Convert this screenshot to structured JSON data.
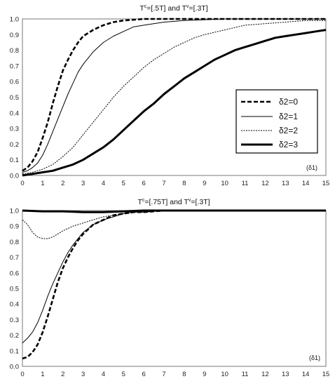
{
  "chart_data": [
    {
      "type": "line",
      "title_parts": {
        "t1": "T",
        "s1": "c",
        "m1": "=[.5T] and T",
        "s2": "v",
        "m2": "=[.3T]"
      },
      "xlabel_tag": "(δ1)",
      "xlim": [
        0,
        15
      ],
      "ylim": [
        0,
        1.0
      ],
      "xticks": [
        "0",
        "1",
        "2",
        "3",
        "4",
        "5",
        "6",
        "7",
        "8",
        "9",
        "10",
        "11",
        "12",
        "13",
        "14",
        "15"
      ],
      "yticks": [
        "0.0",
        "0.1",
        "0.2",
        "0.3",
        "0.4",
        "0.5",
        "0.6",
        "0.7",
        "0.8",
        "0.9",
        "1.0"
      ],
      "grid": false,
      "legend_position": "right-middle",
      "legend": [
        {
          "label": "δ2=0",
          "series": 0
        },
        {
          "label": "δ2=1",
          "series": 1
        },
        {
          "label": "δ2=2",
          "series": 2
        },
        {
          "label": "δ2=3",
          "series": 3
        }
      ],
      "series": [
        {
          "style": "thick-dashed",
          "x": [
            0,
            0.25,
            0.5,
            0.75,
            1,
            1.25,
            1.5,
            1.75,
            2,
            2.25,
            2.5,
            2.75,
            3,
            3.5,
            4,
            4.5,
            5,
            5.5,
            6,
            7,
            8,
            9,
            10,
            11,
            12,
            13,
            14,
            15
          ],
          "y": [
            0.03,
            0.05,
            0.09,
            0.15,
            0.24,
            0.34,
            0.46,
            0.57,
            0.67,
            0.74,
            0.8,
            0.85,
            0.89,
            0.93,
            0.96,
            0.98,
            0.99,
            0.995,
            1,
            1,
            1,
            1,
            1,
            1,
            1,
            1,
            1,
            1
          ]
        },
        {
          "style": "thin-solid",
          "x": [
            0,
            0.25,
            0.5,
            0.75,
            1,
            1.25,
            1.5,
            1.75,
            2,
            2.25,
            2.5,
            2.75,
            3,
            3.5,
            4,
            4.5,
            5,
            5.5,
            6,
            7,
            8,
            9,
            10,
            11,
            12,
            13,
            14,
            15
          ],
          "y": [
            0.02,
            0.03,
            0.05,
            0.08,
            0.13,
            0.2,
            0.28,
            0.36,
            0.44,
            0.52,
            0.59,
            0.66,
            0.71,
            0.79,
            0.85,
            0.89,
            0.92,
            0.95,
            0.96,
            0.98,
            0.99,
            0.995,
            1,
            1,
            1,
            1,
            1,
            1
          ]
        },
        {
          "style": "dotted",
          "x": [
            0,
            0.5,
            1,
            1.5,
            2,
            2.5,
            3,
            3.5,
            4,
            4.5,
            5,
            5.5,
            6,
            6.5,
            7,
            7.5,
            8,
            8.5,
            9,
            10,
            11,
            12,
            13,
            14,
            15
          ],
          "y": [
            0.01,
            0.02,
            0.04,
            0.07,
            0.12,
            0.18,
            0.26,
            0.34,
            0.42,
            0.5,
            0.57,
            0.63,
            0.69,
            0.74,
            0.78,
            0.82,
            0.85,
            0.88,
            0.9,
            0.93,
            0.96,
            0.97,
            0.98,
            0.99,
            0.99
          ]
        },
        {
          "style": "thick-solid",
          "x": [
            0,
            0.5,
            1,
            1.5,
            2,
            2.5,
            3,
            3.5,
            4,
            4.5,
            5,
            5.5,
            6,
            6.5,
            7,
            7.5,
            8,
            8.5,
            9,
            9.5,
            10,
            10.5,
            11,
            11.5,
            12,
            12.5,
            13,
            13.5,
            14,
            14.5,
            15
          ],
          "y": [
            0,
            0.01,
            0.02,
            0.03,
            0.05,
            0.07,
            0.1,
            0.14,
            0.18,
            0.23,
            0.29,
            0.35,
            0.41,
            0.46,
            0.52,
            0.57,
            0.62,
            0.66,
            0.7,
            0.74,
            0.77,
            0.8,
            0.82,
            0.84,
            0.86,
            0.88,
            0.89,
            0.9,
            0.91,
            0.92,
            0.93
          ]
        }
      ]
    },
    {
      "type": "line",
      "title_parts": {
        "t1": "T",
        "s1": "c",
        "m1": "=[.75T] and T",
        "s2": "v",
        "m2": "=[.3T]"
      },
      "xlabel_tag": "(δ1)",
      "xlim": [
        0,
        15
      ],
      "ylim": [
        0,
        1.0
      ],
      "xticks": [
        "0",
        "1",
        "2",
        "3",
        "4",
        "5",
        "6",
        "7",
        "8",
        "9",
        "10",
        "11",
        "12",
        "13",
        "14",
        "15"
      ],
      "yticks": [
        "0.0",
        "0.1",
        "0.2",
        "0.3",
        "0.4",
        "0.5",
        "0.6",
        "0.7",
        "0.8",
        "0.9",
        "1.0"
      ],
      "grid": false,
      "series": [
        {
          "style": "thick-dashed",
          "x": [
            0,
            0.25,
            0.5,
            0.75,
            1,
            1.25,
            1.5,
            1.75,
            2,
            2.25,
            2.5,
            2.75,
            3,
            3.5,
            4,
            4.5,
            5,
            5.5,
            6,
            7,
            8,
            9,
            10,
            11,
            12,
            13,
            14,
            15
          ],
          "y": [
            0.05,
            0.06,
            0.09,
            0.14,
            0.22,
            0.32,
            0.43,
            0.54,
            0.63,
            0.7,
            0.76,
            0.81,
            0.85,
            0.91,
            0.94,
            0.97,
            0.98,
            0.99,
            0.99,
            1,
            1,
            1,
            1,
            1,
            1,
            1,
            1,
            1
          ]
        },
        {
          "style": "thin-solid",
          "x": [
            0,
            0.25,
            0.5,
            0.75,
            1,
            1.25,
            1.5,
            1.75,
            2,
            2.25,
            2.5,
            2.75,
            3,
            3.5,
            4,
            4.5,
            5,
            5.5,
            6,
            7,
            8,
            9,
            10,
            11,
            12,
            13,
            14,
            15
          ],
          "y": [
            0.15,
            0.18,
            0.22,
            0.28,
            0.36,
            0.45,
            0.53,
            0.6,
            0.67,
            0.73,
            0.78,
            0.82,
            0.86,
            0.91,
            0.94,
            0.96,
            0.98,
            0.99,
            0.99,
            1,
            1,
            1,
            1,
            1,
            1,
            1,
            1,
            1
          ]
        },
        {
          "style": "dotted",
          "x": [
            0,
            0.25,
            0.5,
            0.75,
            1,
            1.25,
            1.5,
            1.75,
            2,
            2.5,
            3,
            3.5,
            4,
            4.5,
            5,
            5.5,
            6,
            7,
            8,
            9,
            10,
            11,
            12,
            13,
            14,
            15
          ],
          "y": [
            0.94,
            0.91,
            0.86,
            0.83,
            0.82,
            0.82,
            0.83,
            0.85,
            0.87,
            0.9,
            0.92,
            0.94,
            0.96,
            0.97,
            0.98,
            0.99,
            0.99,
            1,
            1,
            1,
            1,
            1,
            1,
            1,
            1,
            1
          ]
        },
        {
          "style": "thick-solid",
          "x": [
            0,
            1,
            2,
            3,
            4,
            5,
            6,
            7,
            8,
            9,
            10,
            11,
            12,
            13,
            14,
            15
          ],
          "y": [
            1,
            0.995,
            0.995,
            0.99,
            0.99,
            0.995,
            1,
            1,
            1,
            1,
            1,
            1,
            1,
            1,
            1,
            1
          ]
        }
      ]
    }
  ]
}
